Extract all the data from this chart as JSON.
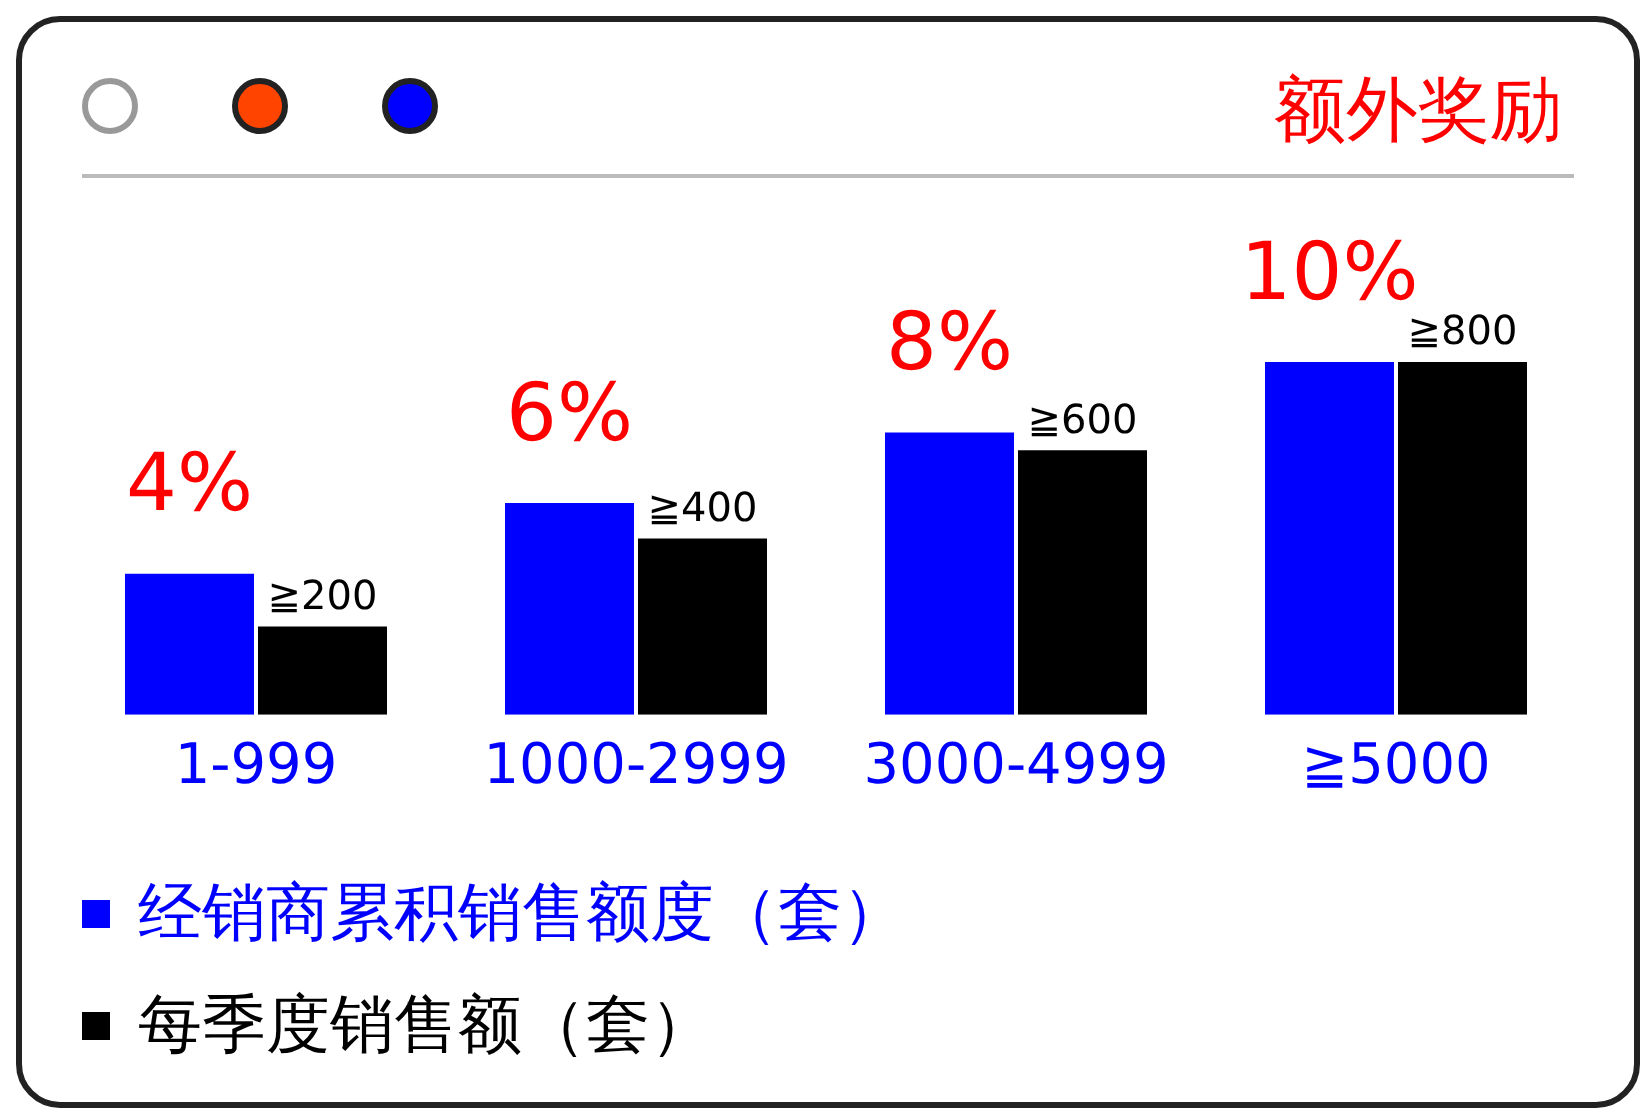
{
  "chart_data": {
    "type": "bar",
    "title": "额外奖励",
    "categories": [
      "1-999",
      "1000-2999",
      "3000-4999",
      "≧5000"
    ],
    "legend": "bottom left",
    "grid": false,
    "tick_labels": "x",
    "series": [
      {
        "name": "经销商累积销售额度（套）",
        "color": "#0000ff",
        "values": [
          4,
          6,
          8,
          10
        ],
        "value_labels": [
          "4%",
          "6%",
          "8%",
          "10%"
        ]
      },
      {
        "name": "每季度销售额（套）",
        "color": "#000000",
        "values": [
          200,
          400,
          600,
          800
        ],
        "value_labels": [
          "≧200",
          "≧400",
          "≧600",
          "≧800"
        ],
        "axis": "y2"
      }
    ]
  }
}
